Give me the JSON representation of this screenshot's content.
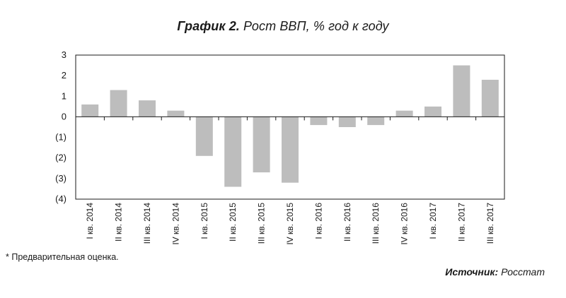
{
  "title": {
    "lead": "График 2.",
    "text": "Рост ВВП, % год к году"
  },
  "footnote": "* Предварительная оценка.",
  "source": {
    "label": "Источник:",
    "value": "Росстат"
  },
  "colors": {
    "bar": "#bdbdbd",
    "axis": "#1a1a1a"
  },
  "chart_data": {
    "type": "bar",
    "title": "Рост ВВП, % год к году",
    "categories": [
      "I кв. 2014",
      "II кв. 2014",
      "III кв. 2014",
      "IV кв. 2014",
      "I кв. 2015",
      "II кв. 2015",
      "III кв. 2015",
      "IV кв. 2015",
      "I кв. 2016",
      "II кв. 2016",
      "III кв. 2016",
      "IV кв. 2016",
      "I кв. 2017",
      "II кв. 2017",
      "III кв. 2017"
    ],
    "values": [
      0.6,
      1.3,
      0.8,
      0.3,
      -1.9,
      -3.4,
      -2.7,
      -3.2,
      -0.4,
      -0.5,
      -0.4,
      0.3,
      0.5,
      2.5,
      1.8
    ],
    "ylim": [
      -4,
      3
    ],
    "yticks": [
      3,
      2,
      1,
      0,
      -1,
      -2,
      -3,
      -4
    ],
    "ytick_labels": [
      "3",
      "2",
      "1",
      "0",
      "(1)",
      "(2)",
      "(3)",
      "(4)"
    ],
    "xlabel": "",
    "ylabel": "",
    "grid": false
  }
}
